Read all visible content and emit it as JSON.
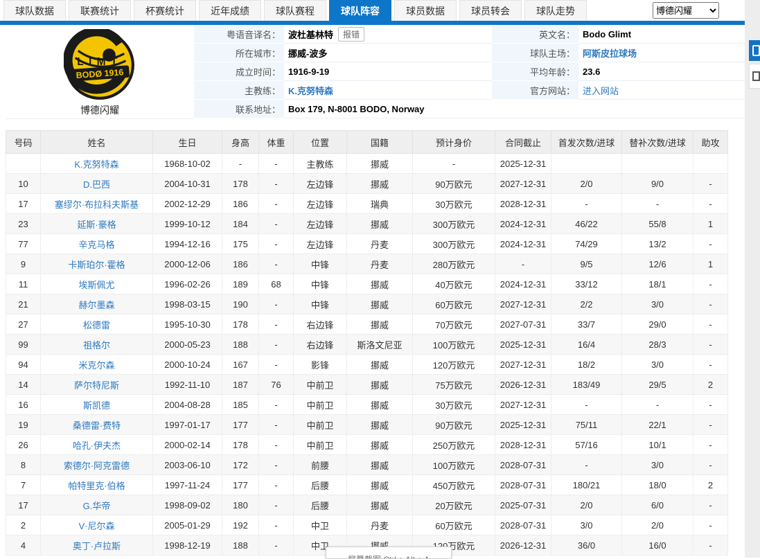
{
  "header": {
    "tabs": [
      {
        "label": "球队数据",
        "active": false
      },
      {
        "label": "联赛统计",
        "active": false
      },
      {
        "label": "杯赛统计",
        "active": false
      },
      {
        "label": "近年成绩",
        "active": false
      },
      {
        "label": "球队赛程",
        "active": false
      },
      {
        "label": "球队阵容",
        "active": true
      },
      {
        "label": "球员数据",
        "active": false
      },
      {
        "label": "球员转会",
        "active": false
      },
      {
        "label": "球队走势",
        "active": false
      }
    ],
    "team_selector_value": "博德闪耀"
  },
  "team_card": {
    "name": "博德闪耀",
    "logo": {
      "banner": "BODØ 1916",
      "letters": "LIMT"
    },
    "rows": {
      "cantonese": {
        "label": "粤语音译名：",
        "value": "波杜基林特",
        "report_button": "报错"
      },
      "english": {
        "label": "英文名：",
        "value": "Bodo Glimt"
      },
      "city": {
        "label": "所在城市：",
        "value": "挪威-波多"
      },
      "stadium": {
        "label": "球队主场：",
        "value": "阿斯皮拉球场"
      },
      "founded": {
        "label": "成立时间：",
        "value": "1916-9-19"
      },
      "avg_age": {
        "label": "平均年龄：",
        "value": "23.6"
      },
      "coach": {
        "label": "主教练：",
        "value": "K.克努特森"
      },
      "website": {
        "label": "官方网站：",
        "value": "进入网站"
      },
      "address": {
        "label": "联系地址：",
        "value": "Box 179, N-8001 BODO, Norway"
      }
    }
  },
  "roster": {
    "headers": [
      "号码",
      "姓名",
      "生日",
      "身高",
      "体重",
      "位置",
      "国籍",
      "预计身价",
      "合同截止",
      "首发次数/进球",
      "替补次数/进球",
      "助攻"
    ],
    "rows": [
      [
        "",
        "K.克努特森",
        "1968-10-02",
        "-",
        "-",
        "主教练",
        "挪威",
        "-",
        "2025-12-31",
        "",
        "",
        ""
      ],
      [
        "10",
        "D.巴西",
        "2004-10-31",
        "178",
        "-",
        "左边锋",
        "挪威",
        "90万欧元",
        "2027-12-31",
        "2/0",
        "9/0",
        "-"
      ],
      [
        "17",
        "塞缪尔·布拉科夫斯基",
        "2002-12-29",
        "186",
        "-",
        "左边锋",
        "瑞典",
        "30万欧元",
        "2028-12-31",
        "-",
        "-",
        "-"
      ],
      [
        "23",
        "延斯·豪格",
        "1999-10-12",
        "184",
        "-",
        "左边锋",
        "挪威",
        "300万欧元",
        "2024-12-31",
        "46/22",
        "55/8",
        "1"
      ],
      [
        "77",
        "辛克马格",
        "1994-12-16",
        "175",
        "-",
        "左边锋",
        "丹麦",
        "300万欧元",
        "2024-12-31",
        "74/29",
        "13/2",
        "-"
      ],
      [
        "9",
        "卡斯珀尔·霍格",
        "2000-12-06",
        "186",
        "-",
        "中锋",
        "丹麦",
        "280万欧元",
        "-",
        "9/5",
        "12/6",
        "1"
      ],
      [
        "11",
        "埃斯佩尤",
        "1996-02-26",
        "189",
        "68",
        "中锋",
        "挪威",
        "40万欧元",
        "2024-12-31",
        "33/12",
        "18/1",
        "-"
      ],
      [
        "21",
        "赫尔墨森",
        "1998-03-15",
        "190",
        "-",
        "中锋",
        "挪威",
        "60万欧元",
        "2027-12-31",
        "2/2",
        "3/0",
        "-"
      ],
      [
        "27",
        "松德雷",
        "1995-10-30",
        "178",
        "-",
        "右边锋",
        "挪威",
        "70万欧元",
        "2027-07-31",
        "33/7",
        "29/0",
        "-"
      ],
      [
        "99",
        "祖格尔",
        "2000-05-23",
        "188",
        "-",
        "右边锋",
        "斯洛文尼亚",
        "100万欧元",
        "2025-12-31",
        "16/4",
        "28/3",
        "-"
      ],
      [
        "94",
        "米克尔森",
        "2000-10-24",
        "167",
        "-",
        "影锋",
        "挪威",
        "120万欧元",
        "2027-12-31",
        "18/2",
        "3/0",
        "-"
      ],
      [
        "14",
        "萨尔特尼斯",
        "1992-11-10",
        "187",
        "76",
        "中前卫",
        "挪威",
        "75万欧元",
        "2026-12-31",
        "183/49",
        "29/5",
        "2"
      ],
      [
        "16",
        "斯凯德",
        "2004-08-28",
        "185",
        "-",
        "中前卫",
        "挪威",
        "30万欧元",
        "2027-12-31",
        "-",
        "-",
        "-"
      ],
      [
        "19",
        "桑德雷·费特",
        "1997-01-17",
        "177",
        "-",
        "中前卫",
        "挪威",
        "90万欧元",
        "2025-12-31",
        "75/11",
        "22/1",
        "-"
      ],
      [
        "26",
        "哈孔·伊夫杰",
        "2000-02-14",
        "178",
        "-",
        "中前卫",
        "挪威",
        "250万欧元",
        "2028-12-31",
        "57/16",
        "10/1",
        "-"
      ],
      [
        "8",
        "索德尔·阿克雷德",
        "2003-06-10",
        "172",
        "-",
        "前腰",
        "挪威",
        "100万欧元",
        "2028-07-31",
        "-",
        "3/0",
        "-"
      ],
      [
        "7",
        "帕特里克·伯格",
        "1997-11-24",
        "177",
        "-",
        "后腰",
        "挪威",
        "450万欧元",
        "2028-07-31",
        "180/21",
        "18/0",
        "2"
      ],
      [
        "17",
        "G.华帝",
        "1998-09-02",
        "180",
        "-",
        "后腰",
        "挪威",
        "20万欧元",
        "2025-07-31",
        "2/0",
        "6/0",
        "-"
      ],
      [
        "2",
        "V·尼尔森",
        "2005-01-29",
        "192",
        "-",
        "中卫",
        "丹麦",
        "60万欧元",
        "2028-07-31",
        "3/0",
        "2/0",
        "-"
      ],
      [
        "4",
        "奥丁·卢拉斯",
        "1998-12-19",
        "188",
        "-",
        "中卫",
        "挪威",
        "120万欧元",
        "2026-12-31",
        "36/0",
        "16/0",
        "-"
      ]
    ]
  },
  "tooltip": {
    "text": "屏幕截图 Ctrl + Alt + A"
  },
  "colors": {
    "accent_blue": "#0d76c9",
    "link_blue": "#2e79c0",
    "label_bg": "#f0f6fb",
    "stripe": "#f7f7f7",
    "header_bg": "#efefef",
    "logo_yellow": "#f2c500",
    "logo_black": "#1a1a1a"
  }
}
